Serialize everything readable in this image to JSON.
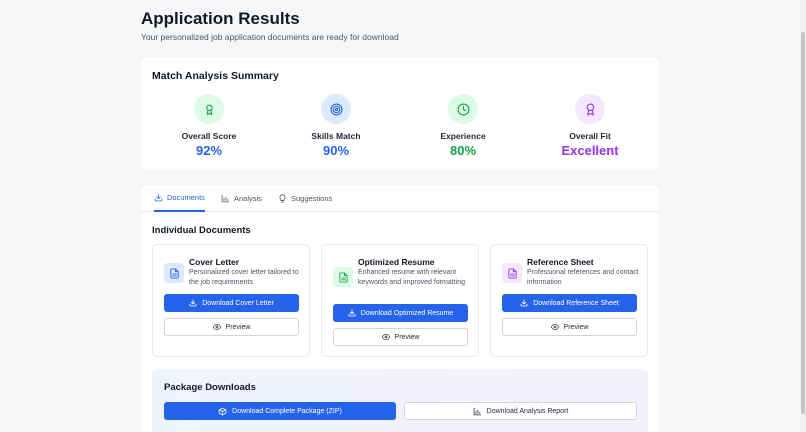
{
  "header": {
    "title": "Application Results",
    "subtitle": "Your personalized job application documents are ready for download"
  },
  "summary": {
    "title": "Match Analysis Summary",
    "metrics": [
      {
        "label": "Overall Score",
        "value": "92%",
        "icon": "award-icon",
        "color": "#2563eb",
        "bg": "#dcfce7"
      },
      {
        "label": "Skills Match",
        "value": "90%",
        "icon": "target-icon",
        "color": "#2563eb",
        "bg": "#dbeafe"
      },
      {
        "label": "Experience",
        "value": "80%",
        "icon": "clock-icon",
        "color": "#16a34a",
        "bg": "#dcfce7"
      },
      {
        "label": "Overall Fit",
        "value": "Excellent",
        "icon": "ribbon-icon",
        "color": "#9333ea",
        "bg": "#f3e8ff"
      }
    ]
  },
  "tabs": [
    {
      "label": "Documents",
      "icon": "download-icon",
      "active": true
    },
    {
      "label": "Analysis",
      "icon": "bar-chart-icon",
      "active": false
    },
    {
      "label": "Suggestions",
      "icon": "lightbulb-icon",
      "active": false
    }
  ],
  "documents": {
    "section_title": "Individual Documents",
    "items": [
      {
        "title": "Cover Letter",
        "description": "Personalized cover letter tailored to the job requirements",
        "download_label": "Download Cover Letter",
        "preview_label": "Preview",
        "icon_color": "#2563eb",
        "icon_bg": "#dbeafe"
      },
      {
        "title": "Optimized Resume",
        "description": "Enhanced resume with relevant keywords and improved formatting",
        "download_label": "Download Optimized Resume",
        "preview_label": "Preview",
        "icon_color": "#16a34a",
        "icon_bg": "#dcfce7"
      },
      {
        "title": "Reference Sheet",
        "description": "Professional references and contact information",
        "download_label": "Download Reference Sheet",
        "preview_label": "Preview",
        "icon_color": "#9333ea",
        "icon_bg": "#f3e8ff"
      }
    ]
  },
  "package": {
    "title": "Package Downloads",
    "zip_label": "Download Complete Package (ZIP)",
    "report_label": "Download Analysis Report"
  },
  "colors": {
    "accent": "#2563eb",
    "success": "#16a34a",
    "purple": "#9333ea"
  }
}
